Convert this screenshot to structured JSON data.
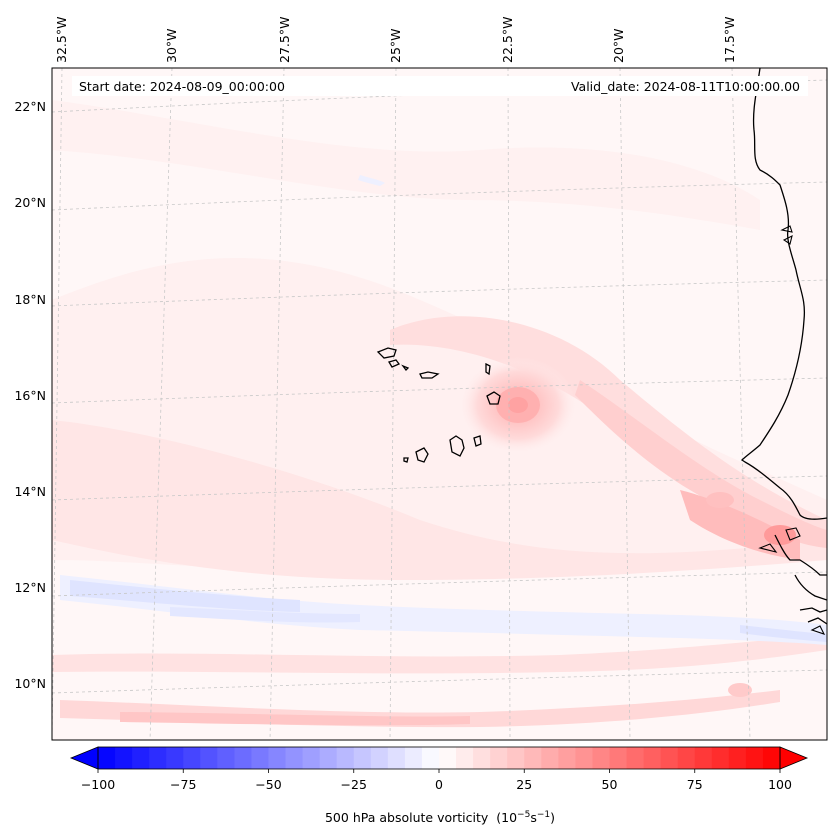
{
  "header": {
    "start_date": "Start date: 2024-08-09_00:00:00",
    "valid_date": "Valid_date: 2024-08-11T10:00:00.00"
  },
  "axes": {
    "lon_labels": [
      "32.5°W",
      "30°W",
      "27.5°W",
      "25°W",
      "22.5°W",
      "20°W",
      "17.5°W"
    ],
    "lat_labels": [
      "22°N",
      "20°N",
      "18°N",
      "16°N",
      "14°N",
      "12°N",
      "10°N"
    ]
  },
  "colorbar": {
    "title": "500 hPa absolute vorticity",
    "units_prefix": "(10",
    "units_exp1": "−5",
    "units_mid": "s",
    "units_exp2": "−1",
    "units_suffix": ")",
    "min": -100,
    "max": 100,
    "levels": 40,
    "ticks": [
      "−100",
      "−75",
      "−50",
      "−25",
      "0",
      "25",
      "50",
      "75",
      "100"
    ],
    "tick_values": [
      -100,
      -75,
      -50,
      -25,
      0,
      25,
      50,
      75,
      100
    ],
    "cmap": "bwr",
    "color_min": "#0000ff",
    "color_mid": "#ffffff",
    "color_max": "#ff0000"
  },
  "map": {
    "coastline_color": "#000000",
    "grid_color": "#c8c8c8",
    "features": [
      "Cabo Verde islands",
      "West African coastline",
      "vorticity maximum near 15.8°N 22.4°W"
    ]
  }
}
